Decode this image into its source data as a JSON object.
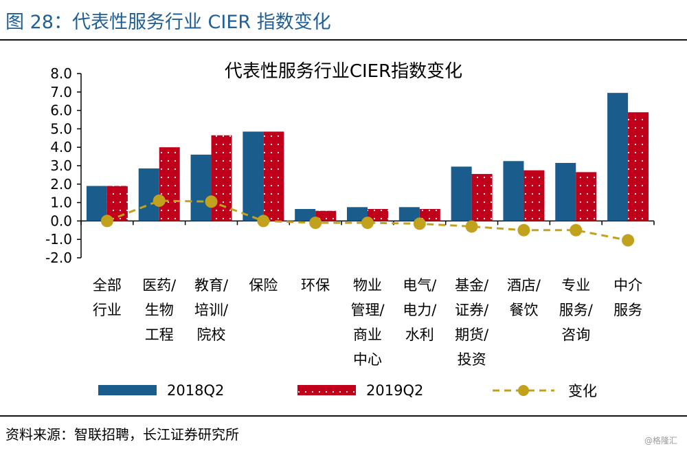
{
  "figure": {
    "title": "图 28：代表性服务行业 CIER 指数变化",
    "source": "资料来源：智联招聘，长江证券研究所",
    "watermark": "@格隆汇"
  },
  "colors": {
    "title_blue": "#1f5f96",
    "bar_2018": "#1a5c8c",
    "bar_2019": "#c0001a",
    "line_change": "#c2a21d"
  },
  "chart_data": {
    "type": "bar",
    "title": "代表性服务行业CIER指数变化",
    "categories": [
      [
        "全部",
        "行业"
      ],
      [
        "医药/",
        "生物",
        "工程"
      ],
      [
        "教育/",
        "培训/",
        "院校"
      ],
      [
        "保险"
      ],
      [
        "环保"
      ],
      [
        "物业",
        "管理/",
        "商业",
        "中心"
      ],
      [
        "电气/",
        "电力/",
        "水利"
      ],
      [
        "基金/",
        "证券/",
        "期货/",
        "投资"
      ],
      [
        "酒店/",
        "餐饮"
      ],
      [
        "专业",
        "服务/",
        "咨询"
      ],
      [
        "中介",
        "服务"
      ]
    ],
    "series": [
      {
        "name": "2018Q2",
        "kind": "bar",
        "color": "#1a5c8c",
        "values": [
          1.9,
          2.85,
          3.6,
          4.85,
          0.65,
          0.75,
          0.75,
          2.95,
          3.25,
          3.15,
          6.95
        ]
      },
      {
        "name": "2019Q2",
        "kind": "bar",
        "color": "#c0001a",
        "values": [
          1.9,
          4.0,
          4.65,
          4.85,
          0.55,
          0.65,
          0.65,
          2.55,
          2.75,
          2.65,
          5.9
        ]
      },
      {
        "name": "变化",
        "kind": "line",
        "color": "#c2a21d",
        "values": [
          0.0,
          1.1,
          1.05,
          0.0,
          -0.1,
          -0.1,
          -0.15,
          -0.3,
          -0.5,
          -0.5,
          -1.05
        ]
      }
    ],
    "y_ticks": [
      "8.0",
      "7.0",
      "6.0",
      "5.0",
      "4.0",
      "3.0",
      "2.0",
      "1.0",
      "0.0",
      "-1.0",
      "-2.0"
    ],
    "ylim": [
      -2,
      8
    ],
    "grid": false,
    "legend_position": "bottom"
  }
}
